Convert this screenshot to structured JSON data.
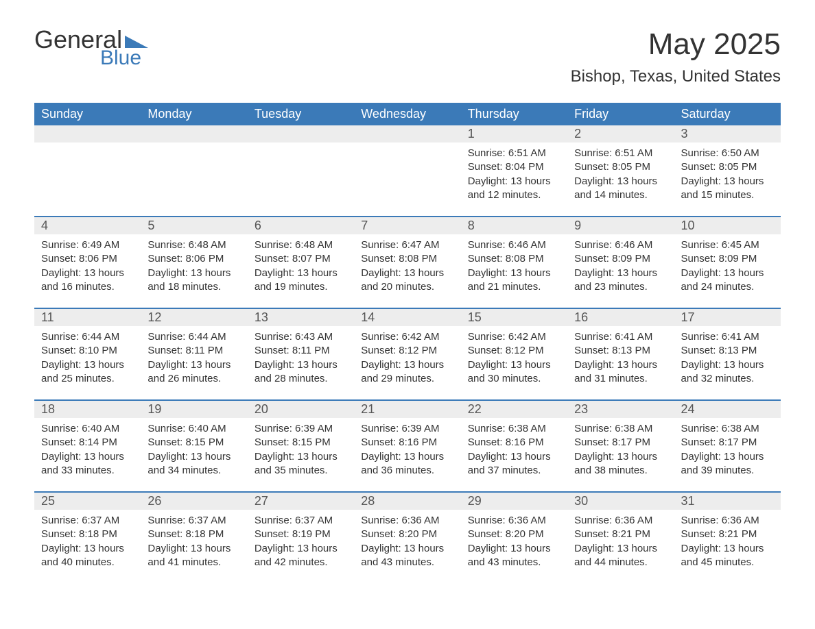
{
  "logo": {
    "text1": "General",
    "text2": "Blue",
    "accent_color": "#3b7ab8"
  },
  "title": "May 2025",
  "location": "Bishop, Texas, United States",
  "weekdays": [
    "Sunday",
    "Monday",
    "Tuesday",
    "Wednesday",
    "Thursday",
    "Friday",
    "Saturday"
  ],
  "colors": {
    "header_bg": "#3b7ab8",
    "header_text": "#ffffff",
    "daynum_bg": "#ededed",
    "text": "#333333",
    "row_border": "#3b7ab8"
  },
  "fonts": {
    "title_size_pt": 33,
    "location_size_pt": 18,
    "weekday_size_pt": 14,
    "body_size_pt": 11
  },
  "weeks": [
    [
      {
        "n": "",
        "sunrise": "",
        "sunset": "",
        "daylight": ""
      },
      {
        "n": "",
        "sunrise": "",
        "sunset": "",
        "daylight": ""
      },
      {
        "n": "",
        "sunrise": "",
        "sunset": "",
        "daylight": ""
      },
      {
        "n": "",
        "sunrise": "",
        "sunset": "",
        "daylight": ""
      },
      {
        "n": "1",
        "sunrise": "Sunrise: 6:51 AM",
        "sunset": "Sunset: 8:04 PM",
        "daylight": "Daylight: 13 hours and 12 minutes."
      },
      {
        "n": "2",
        "sunrise": "Sunrise: 6:51 AM",
        "sunset": "Sunset: 8:05 PM",
        "daylight": "Daylight: 13 hours and 14 minutes."
      },
      {
        "n": "3",
        "sunrise": "Sunrise: 6:50 AM",
        "sunset": "Sunset: 8:05 PM",
        "daylight": "Daylight: 13 hours and 15 minutes."
      }
    ],
    [
      {
        "n": "4",
        "sunrise": "Sunrise: 6:49 AM",
        "sunset": "Sunset: 8:06 PM",
        "daylight": "Daylight: 13 hours and 16 minutes."
      },
      {
        "n": "5",
        "sunrise": "Sunrise: 6:48 AM",
        "sunset": "Sunset: 8:06 PM",
        "daylight": "Daylight: 13 hours and 18 minutes."
      },
      {
        "n": "6",
        "sunrise": "Sunrise: 6:48 AM",
        "sunset": "Sunset: 8:07 PM",
        "daylight": "Daylight: 13 hours and 19 minutes."
      },
      {
        "n": "7",
        "sunrise": "Sunrise: 6:47 AM",
        "sunset": "Sunset: 8:08 PM",
        "daylight": "Daylight: 13 hours and 20 minutes."
      },
      {
        "n": "8",
        "sunrise": "Sunrise: 6:46 AM",
        "sunset": "Sunset: 8:08 PM",
        "daylight": "Daylight: 13 hours and 21 minutes."
      },
      {
        "n": "9",
        "sunrise": "Sunrise: 6:46 AM",
        "sunset": "Sunset: 8:09 PM",
        "daylight": "Daylight: 13 hours and 23 minutes."
      },
      {
        "n": "10",
        "sunrise": "Sunrise: 6:45 AM",
        "sunset": "Sunset: 8:09 PM",
        "daylight": "Daylight: 13 hours and 24 minutes."
      }
    ],
    [
      {
        "n": "11",
        "sunrise": "Sunrise: 6:44 AM",
        "sunset": "Sunset: 8:10 PM",
        "daylight": "Daylight: 13 hours and 25 minutes."
      },
      {
        "n": "12",
        "sunrise": "Sunrise: 6:44 AM",
        "sunset": "Sunset: 8:11 PM",
        "daylight": "Daylight: 13 hours and 26 minutes."
      },
      {
        "n": "13",
        "sunrise": "Sunrise: 6:43 AM",
        "sunset": "Sunset: 8:11 PM",
        "daylight": "Daylight: 13 hours and 28 minutes."
      },
      {
        "n": "14",
        "sunrise": "Sunrise: 6:42 AM",
        "sunset": "Sunset: 8:12 PM",
        "daylight": "Daylight: 13 hours and 29 minutes."
      },
      {
        "n": "15",
        "sunrise": "Sunrise: 6:42 AM",
        "sunset": "Sunset: 8:12 PM",
        "daylight": "Daylight: 13 hours and 30 minutes."
      },
      {
        "n": "16",
        "sunrise": "Sunrise: 6:41 AM",
        "sunset": "Sunset: 8:13 PM",
        "daylight": "Daylight: 13 hours and 31 minutes."
      },
      {
        "n": "17",
        "sunrise": "Sunrise: 6:41 AM",
        "sunset": "Sunset: 8:13 PM",
        "daylight": "Daylight: 13 hours and 32 minutes."
      }
    ],
    [
      {
        "n": "18",
        "sunrise": "Sunrise: 6:40 AM",
        "sunset": "Sunset: 8:14 PM",
        "daylight": "Daylight: 13 hours and 33 minutes."
      },
      {
        "n": "19",
        "sunrise": "Sunrise: 6:40 AM",
        "sunset": "Sunset: 8:15 PM",
        "daylight": "Daylight: 13 hours and 34 minutes."
      },
      {
        "n": "20",
        "sunrise": "Sunrise: 6:39 AM",
        "sunset": "Sunset: 8:15 PM",
        "daylight": "Daylight: 13 hours and 35 minutes."
      },
      {
        "n": "21",
        "sunrise": "Sunrise: 6:39 AM",
        "sunset": "Sunset: 8:16 PM",
        "daylight": "Daylight: 13 hours and 36 minutes."
      },
      {
        "n": "22",
        "sunrise": "Sunrise: 6:38 AM",
        "sunset": "Sunset: 8:16 PM",
        "daylight": "Daylight: 13 hours and 37 minutes."
      },
      {
        "n": "23",
        "sunrise": "Sunrise: 6:38 AM",
        "sunset": "Sunset: 8:17 PM",
        "daylight": "Daylight: 13 hours and 38 minutes."
      },
      {
        "n": "24",
        "sunrise": "Sunrise: 6:38 AM",
        "sunset": "Sunset: 8:17 PM",
        "daylight": "Daylight: 13 hours and 39 minutes."
      }
    ],
    [
      {
        "n": "25",
        "sunrise": "Sunrise: 6:37 AM",
        "sunset": "Sunset: 8:18 PM",
        "daylight": "Daylight: 13 hours and 40 minutes."
      },
      {
        "n": "26",
        "sunrise": "Sunrise: 6:37 AM",
        "sunset": "Sunset: 8:18 PM",
        "daylight": "Daylight: 13 hours and 41 minutes."
      },
      {
        "n": "27",
        "sunrise": "Sunrise: 6:37 AM",
        "sunset": "Sunset: 8:19 PM",
        "daylight": "Daylight: 13 hours and 42 minutes."
      },
      {
        "n": "28",
        "sunrise": "Sunrise: 6:36 AM",
        "sunset": "Sunset: 8:20 PM",
        "daylight": "Daylight: 13 hours and 43 minutes."
      },
      {
        "n": "29",
        "sunrise": "Sunrise: 6:36 AM",
        "sunset": "Sunset: 8:20 PM",
        "daylight": "Daylight: 13 hours and 43 minutes."
      },
      {
        "n": "30",
        "sunrise": "Sunrise: 6:36 AM",
        "sunset": "Sunset: 8:21 PM",
        "daylight": "Daylight: 13 hours and 44 minutes."
      },
      {
        "n": "31",
        "sunrise": "Sunrise: 6:36 AM",
        "sunset": "Sunset: 8:21 PM",
        "daylight": "Daylight: 13 hours and 45 minutes."
      }
    ]
  ]
}
